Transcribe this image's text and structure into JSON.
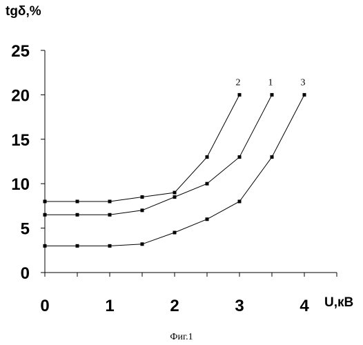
{
  "chart_data": {
    "type": "line",
    "ylabel": "tgδ,%",
    "xlabel": "U,кВ",
    "caption": "Фиг.1",
    "xlim": [
      0,
      4.5
    ],
    "ylim": [
      0,
      25
    ],
    "x_ticks": [
      "0",
      "1",
      "2",
      "3",
      "4"
    ],
    "y_ticks": [
      "0",
      "5",
      "10",
      "15",
      "20",
      "25"
    ],
    "x_tick_values": [
      0,
      1,
      2,
      3,
      4
    ],
    "y_tick_values": [
      0,
      5,
      10,
      15,
      20,
      25
    ],
    "grid": false,
    "series": [
      {
        "name": "2",
        "x": [
          0,
          0.5,
          1,
          1.5,
          2,
          2.5,
          3
        ],
        "y": [
          8,
          8,
          8,
          8.5,
          9,
          13,
          20
        ]
      },
      {
        "name": "1",
        "x": [
          0,
          0.5,
          1,
          1.5,
          2,
          2.5,
          3,
          3.5
        ],
        "y": [
          6.5,
          6.5,
          6.5,
          7,
          8.5,
          10,
          13,
          20
        ]
      },
      {
        "name": "3",
        "x": [
          0,
          0.5,
          1,
          1.5,
          2,
          2.5,
          3,
          3.5,
          4
        ],
        "y": [
          3,
          3,
          3,
          3.2,
          4.5,
          6,
          8,
          13,
          20
        ]
      }
    ]
  }
}
